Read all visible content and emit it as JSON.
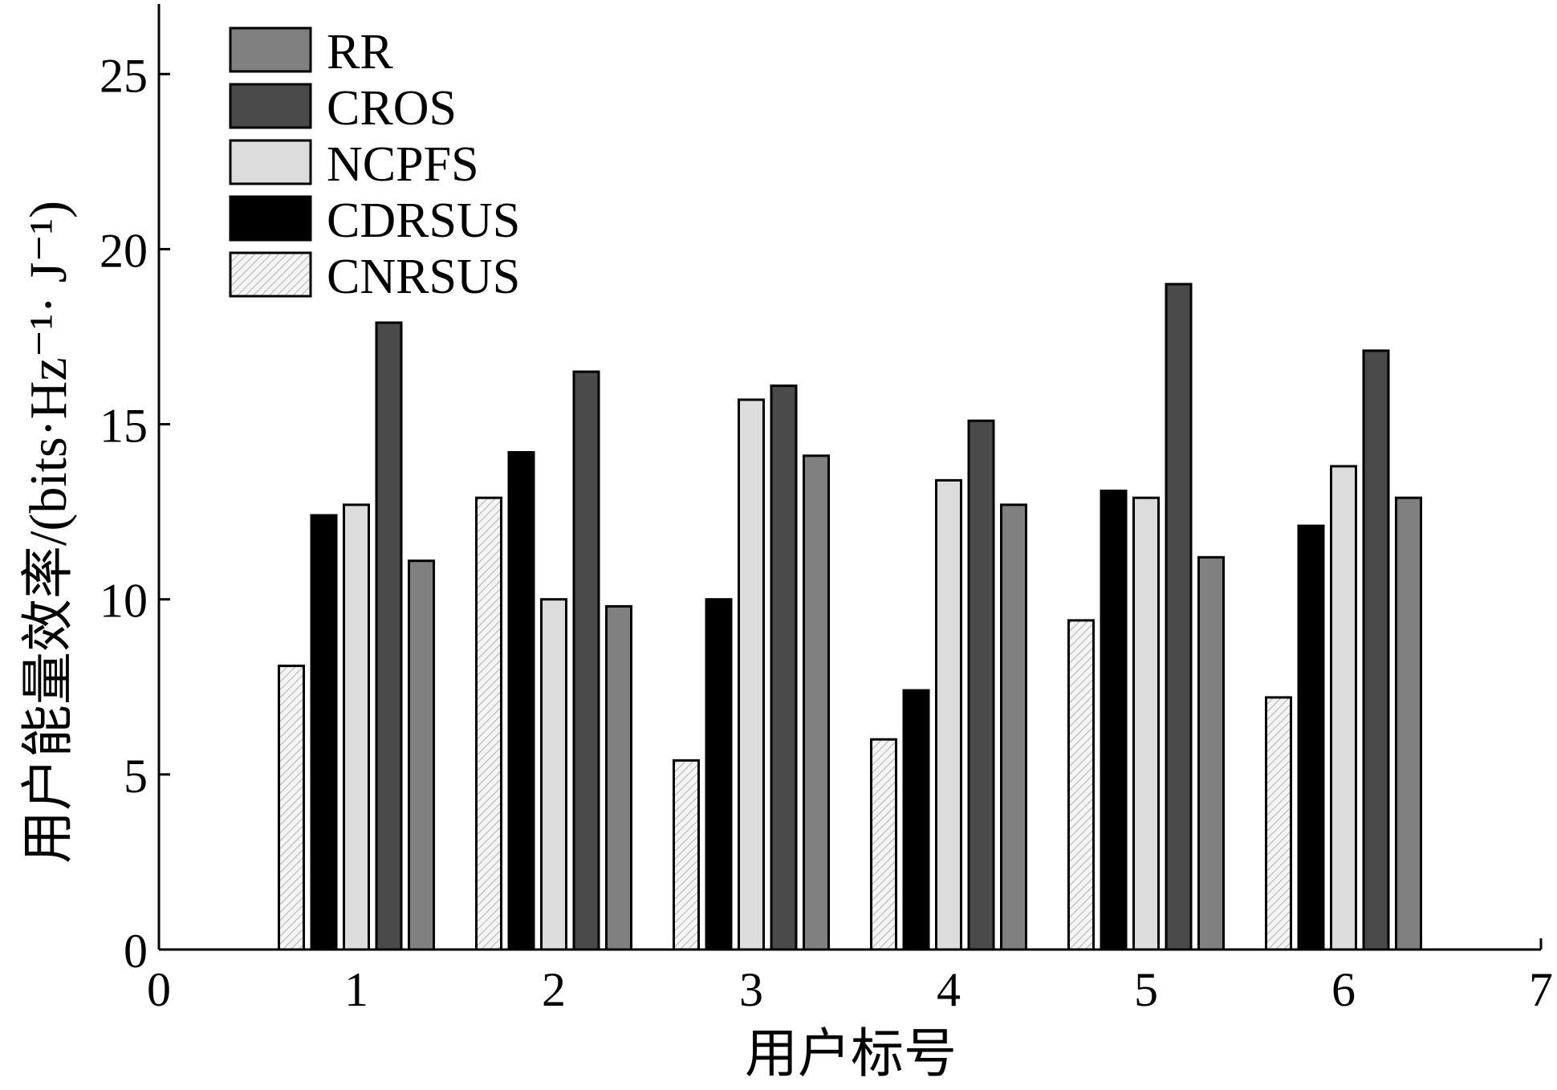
{
  "chart_data": {
    "type": "bar",
    "xlabel": "用户标号",
    "ylabel": "用户能量效率/(bits·Hz⁻¹· J⁻¹)",
    "xlim": [
      0,
      7
    ],
    "ylim": [
      0,
      27
    ],
    "xticks": [
      "0",
      "1",
      "2",
      "3",
      "4",
      "5",
      "6",
      "7"
    ],
    "yticks": [
      "0",
      "5",
      "10",
      "15",
      "20",
      "25"
    ],
    "categories": [
      "1",
      "2",
      "3",
      "4",
      "5",
      "6"
    ],
    "legend": {
      "position": "top-left",
      "entries": [
        "RR",
        "CROS",
        "NCPFS",
        "CDRSUS",
        "CNRSUS"
      ]
    },
    "series": [
      {
        "name": "CNRSUS",
        "color": "#f2f2f2",
        "pattern": "hatch",
        "values": [
          8.1,
          12.9,
          5.4,
          6.0,
          9.4,
          7.2
        ]
      },
      {
        "name": "CDRSUS",
        "color": "#000000",
        "values": [
          12.4,
          14.2,
          10.0,
          7.4,
          13.1,
          12.1
        ]
      },
      {
        "name": "NCPFS",
        "color": "#dcdcdc",
        "values": [
          12.7,
          10.0,
          15.7,
          13.4,
          12.9,
          13.8
        ]
      },
      {
        "name": "CROS",
        "color": "#4a4a4a",
        "values": [
          17.9,
          16.5,
          16.1,
          15.1,
          19.0,
          17.1
        ]
      },
      {
        "name": "RR",
        "color": "#808080",
        "values": [
          11.1,
          9.8,
          14.1,
          12.7,
          11.2,
          12.9
        ]
      }
    ],
    "grid": false
  }
}
